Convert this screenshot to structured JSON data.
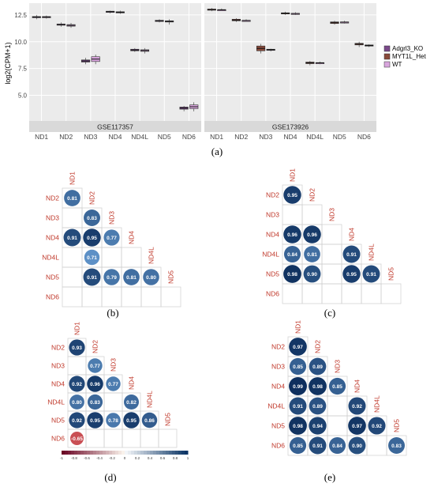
{
  "captions": {
    "a": "(a)",
    "b": "(b)",
    "c": "(c)",
    "d": "(d)",
    "e": "(e)"
  },
  "colors": {
    "Adgrl3_KO": "#7b4a8a",
    "MYT1L_Het": "#8a4a3a",
    "WT": "#d9a6de",
    "panel_bg": "#ebebeb",
    "strip_bg": "#d9d9d9",
    "corr_label": "#c0392b",
    "corr_high": "#0b2c5a",
    "corr_low": "#b2182b"
  },
  "chart_data": [
    {
      "type": "box",
      "id": "a",
      "ylabel": "log2(CPM+1)",
      "ylim": [
        2.6,
        13.6
      ],
      "yticks": [
        "5.0",
        "7.5",
        "10.0",
        "12.5"
      ],
      "ytick_values": [
        5.0,
        7.5,
        10.0,
        12.5
      ],
      "legend": {
        "position": "right",
        "entries": [
          "Adgrl3_KO",
          "MYT1L_Het",
          "WT"
        ]
      },
      "facets": [
        {
          "strip": "GSE117357",
          "categories": [
            "ND1",
            "ND2",
            "ND3",
            "ND4",
            "ND4L",
            "ND5",
            "ND6"
          ],
          "series": [
            {
              "name": "Adgrl3_KO",
              "boxes": [
                [
                  12.1,
                  12.25,
                  12.35,
                  12.5
                ],
                [
                  11.4,
                  11.55,
                  11.65,
                  11.8
                ],
                [
                  7.9,
                  8.1,
                  8.3,
                  8.5
                ],
                [
                  12.65,
                  12.75,
                  12.85,
                  12.9
                ],
                [
                  9.05,
                  9.15,
                  9.3,
                  9.4
                ],
                [
                  11.8,
                  11.9,
                  12.0,
                  12.1
                ],
                [
                  3.5,
                  3.7,
                  3.9,
                  4.0
                ]
              ]
            },
            {
              "name": "WT",
              "boxes": [
                [
                  12.15,
                  12.25,
                  12.35,
                  12.45
                ],
                [
                  11.3,
                  11.45,
                  11.6,
                  11.75
                ],
                [
                  7.9,
                  8.15,
                  8.6,
                  8.8
                ],
                [
                  12.6,
                  12.7,
                  12.8,
                  12.9
                ],
                [
                  8.9,
                  9.1,
                  9.25,
                  9.4
                ],
                [
                  11.6,
                  11.85,
                  11.95,
                  12.1
                ],
                [
                  3.5,
                  3.75,
                  4.1,
                  4.35
                ]
              ]
            }
          ]
        },
        {
          "strip": "GSE173926",
          "categories": [
            "ND1",
            "ND2",
            "ND3",
            "ND4",
            "ND4L",
            "ND5",
            "ND6"
          ],
          "series": [
            {
              "name": "MYT1L_Het",
              "boxes": [
                [
                  12.85,
                  12.95,
                  13.05,
                  13.15
                ],
                [
                  11.85,
                  11.95,
                  12.1,
                  12.2
                ],
                [
                  8.9,
                  9.15,
                  9.6,
                  9.8
                ],
                [
                  12.5,
                  12.6,
                  12.7,
                  12.8
                ],
                [
                  7.8,
                  7.95,
                  8.1,
                  8.2
                ],
                [
                  11.6,
                  11.7,
                  11.85,
                  11.95
                ],
                [
                  9.5,
                  9.7,
                  9.85,
                  10.0
                ]
              ]
            },
            {
              "name": "WT",
              "boxes": [
                [
                  12.9,
                  12.95,
                  13.0,
                  13.1
                ],
                [
                  11.9,
                  11.95,
                  12.0,
                  12.1
                ],
                [
                  9.1,
                  9.2,
                  9.3,
                  9.35
                ],
                [
                  12.5,
                  12.6,
                  12.65,
                  12.75
                ],
                [
                  7.9,
                  8.0,
                  8.05,
                  8.15
                ],
                [
                  11.7,
                  11.8,
                  11.85,
                  11.95
                ],
                [
                  9.5,
                  9.6,
                  9.7,
                  9.75
                ]
              ]
            }
          ]
        }
      ]
    },
    {
      "type": "heatmap",
      "id": "b",
      "labels": [
        "ND1",
        "ND2",
        "ND3",
        "ND4",
        "ND4L",
        "ND5",
        "ND6"
      ],
      "cells": [
        [
          "ND2",
          "ND1",
          0.81
        ],
        [
          "ND3",
          "ND2",
          0.83
        ],
        [
          "ND4",
          "ND1",
          0.91
        ],
        [
          "ND4",
          "ND2",
          0.95
        ],
        [
          "ND4",
          "ND3",
          0.77
        ],
        [
          "ND4L",
          "ND2",
          0.71
        ],
        [
          "ND5",
          "ND2",
          0.91
        ],
        [
          "ND5",
          "ND3",
          0.79
        ],
        [
          "ND5",
          "ND4",
          0.81
        ],
        [
          "ND5",
          "ND4L",
          0.8
        ]
      ]
    },
    {
      "type": "heatmap",
      "id": "c",
      "labels": [
        "ND1",
        "ND2",
        "ND3",
        "ND4",
        "ND4L",
        "ND5",
        "ND6"
      ],
      "cells": [
        [
          "ND2",
          "ND1",
          0.95
        ],
        [
          "ND4",
          "ND1",
          0.96
        ],
        [
          "ND4",
          "ND2",
          0.96
        ],
        [
          "ND4L",
          "ND1",
          0.84
        ],
        [
          "ND4L",
          "ND2",
          0.81
        ],
        [
          "ND4L",
          "ND4",
          0.91
        ],
        [
          "ND5",
          "ND1",
          0.98
        ],
        [
          "ND5",
          "ND2",
          0.9
        ],
        [
          "ND5",
          "ND4",
          0.95
        ],
        [
          "ND5",
          "ND4L",
          0.91
        ]
      ]
    },
    {
      "type": "heatmap",
      "id": "d",
      "labels": [
        "ND1",
        "ND2",
        "ND3",
        "ND4",
        "ND4L",
        "ND5",
        "ND6"
      ],
      "cells": [
        [
          "ND2",
          "ND1",
          0.93
        ],
        [
          "ND3",
          "ND2",
          0.77
        ],
        [
          "ND4",
          "ND1",
          0.92
        ],
        [
          "ND4",
          "ND2",
          0.96
        ],
        [
          "ND4",
          "ND3",
          0.77
        ],
        [
          "ND4L",
          "ND1",
          0.8
        ],
        [
          "ND4L",
          "ND2",
          0.83
        ],
        [
          "ND4L",
          "ND4",
          0.82
        ],
        [
          "ND5",
          "ND1",
          0.92
        ],
        [
          "ND5",
          "ND2",
          0.95
        ],
        [
          "ND5",
          "ND3",
          0.78
        ],
        [
          "ND5",
          "ND4",
          0.95
        ],
        [
          "ND5",
          "ND4L",
          0.86
        ],
        [
          "ND6",
          "ND1",
          -0.65
        ]
      ],
      "colorbar": {
        "range": [
          -1,
          1
        ],
        "ticks": [
          "-1",
          "-0.8",
          "-0.6",
          "-0.4",
          "-0.2",
          "0",
          "0.2",
          "0.4",
          "0.6",
          "0.8",
          "1"
        ]
      }
    },
    {
      "type": "heatmap",
      "id": "e",
      "labels": [
        "ND1",
        "ND2",
        "ND3",
        "ND4",
        "ND4L",
        "ND5",
        "ND6"
      ],
      "cells": [
        [
          "ND2",
          "ND1",
          0.97
        ],
        [
          "ND3",
          "ND1",
          0.85
        ],
        [
          "ND3",
          "ND2",
          0.89
        ],
        [
          "ND4",
          "ND1",
          0.99
        ],
        [
          "ND4",
          "ND2",
          0.98
        ],
        [
          "ND4",
          "ND3",
          0.85
        ],
        [
          "ND4L",
          "ND1",
          0.91
        ],
        [
          "ND4L",
          "ND2",
          0.89
        ],
        [
          "ND4L",
          "ND4",
          0.92
        ],
        [
          "ND5",
          "ND1",
          0.98
        ],
        [
          "ND5",
          "ND2",
          0.94
        ],
        [
          "ND5",
          "ND4",
          0.97
        ],
        [
          "ND5",
          "ND4L",
          0.92
        ],
        [
          "ND6",
          "ND1",
          0.85
        ],
        [
          "ND6",
          "ND2",
          0.91
        ],
        [
          "ND6",
          "ND3",
          0.84
        ],
        [
          "ND6",
          "ND4",
          0.9
        ],
        [
          "ND6",
          "ND5",
          0.83
        ]
      ]
    }
  ]
}
